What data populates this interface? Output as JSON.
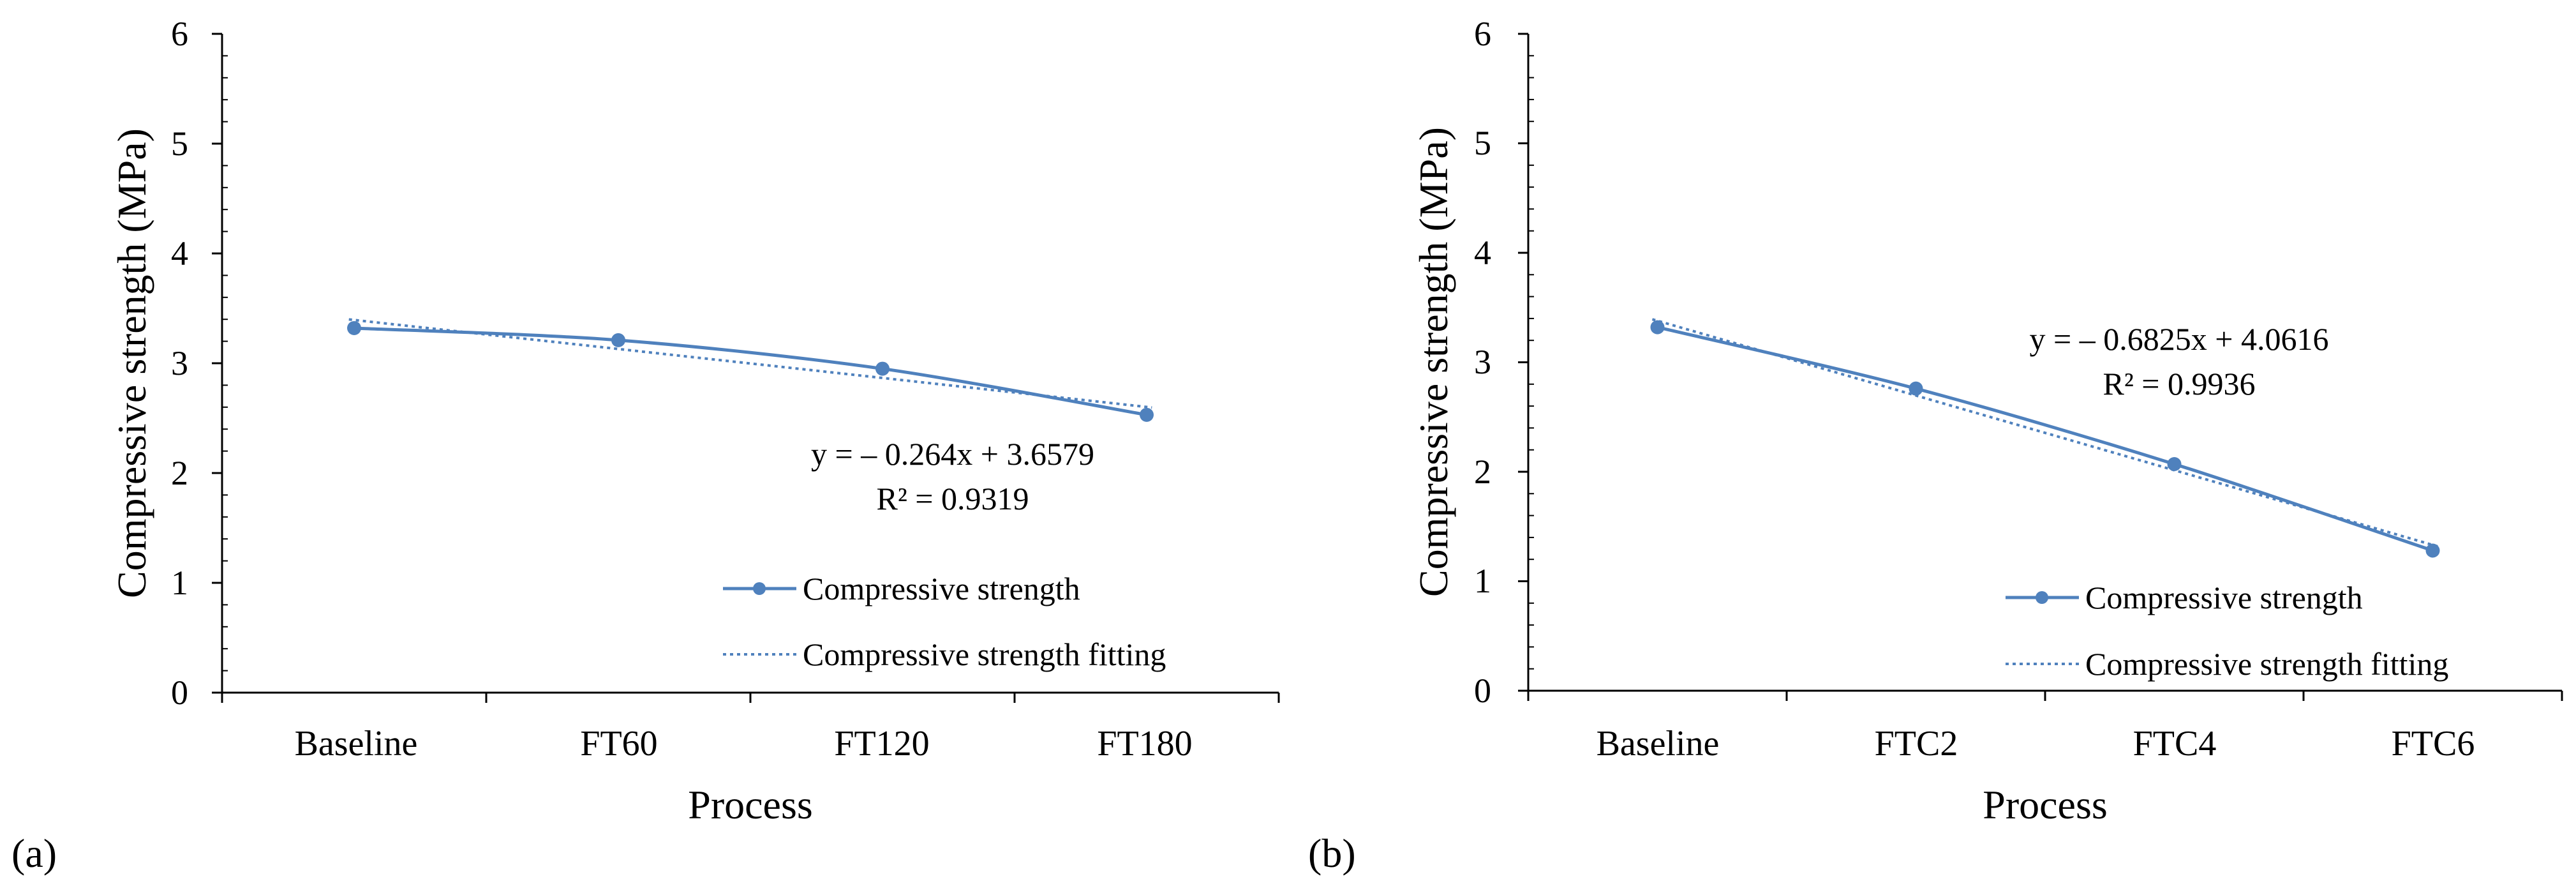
{
  "colors": {
    "series": "#4f81bd",
    "axis": "#000000",
    "background": "#ffffff"
  },
  "chart_data": [
    {
      "type": "line",
      "panel_label": "(a)",
      "title": "",
      "xlabel": "Process",
      "ylabel": "Compressive strength (MPa)",
      "categories": [
        "Baseline",
        "FT60",
        "FT120",
        "FT180"
      ],
      "ylim": [
        0,
        6
      ],
      "yticks": [
        "0",
        "1",
        "2",
        "3",
        "4",
        "5",
        "6"
      ],
      "grid": false,
      "series": [
        {
          "name": "Compressive strength",
          "style": "solid-with-markers",
          "values": [
            3.32,
            3.21,
            2.95,
            2.53
          ]
        },
        {
          "name": "Compressive strength fitting",
          "style": "dotted-trendline",
          "slope": -0.264,
          "intercept": 3.6579
        }
      ],
      "annotation": {
        "equation": "y = – 0.264x  + 3.6579",
        "r2": "R² = 0.9319"
      },
      "legend": {
        "position": "bottom-right",
        "entries": [
          "Compressive strength",
          "Compressive strength fitting"
        ]
      }
    },
    {
      "type": "line",
      "panel_label": "(b)",
      "title": "",
      "xlabel": "Process",
      "ylabel": "Compressive strength (MPa)",
      "categories": [
        "Baseline",
        "FTC2",
        "FTC4",
        "FTC6"
      ],
      "ylim": [
        0,
        6
      ],
      "yticks": [
        "0",
        "1",
        "2",
        "3",
        "4",
        "5",
        "6"
      ],
      "grid": false,
      "series": [
        {
          "name": "Compressive strength",
          "style": "solid-with-markers",
          "values": [
            3.32,
            2.76,
            2.07,
            1.28
          ]
        },
        {
          "name": "Compressive strength fitting",
          "style": "dotted-trendline",
          "slope": -0.6825,
          "intercept": 4.0616
        }
      ],
      "annotation": {
        "equation": "y = – 0.6825x  + 4.0616",
        "r2": "R² = 0.9936"
      },
      "legend": {
        "position": "bottom-right",
        "entries": [
          "Compressive strength",
          "Compressive strength fitting"
        ]
      }
    }
  ]
}
